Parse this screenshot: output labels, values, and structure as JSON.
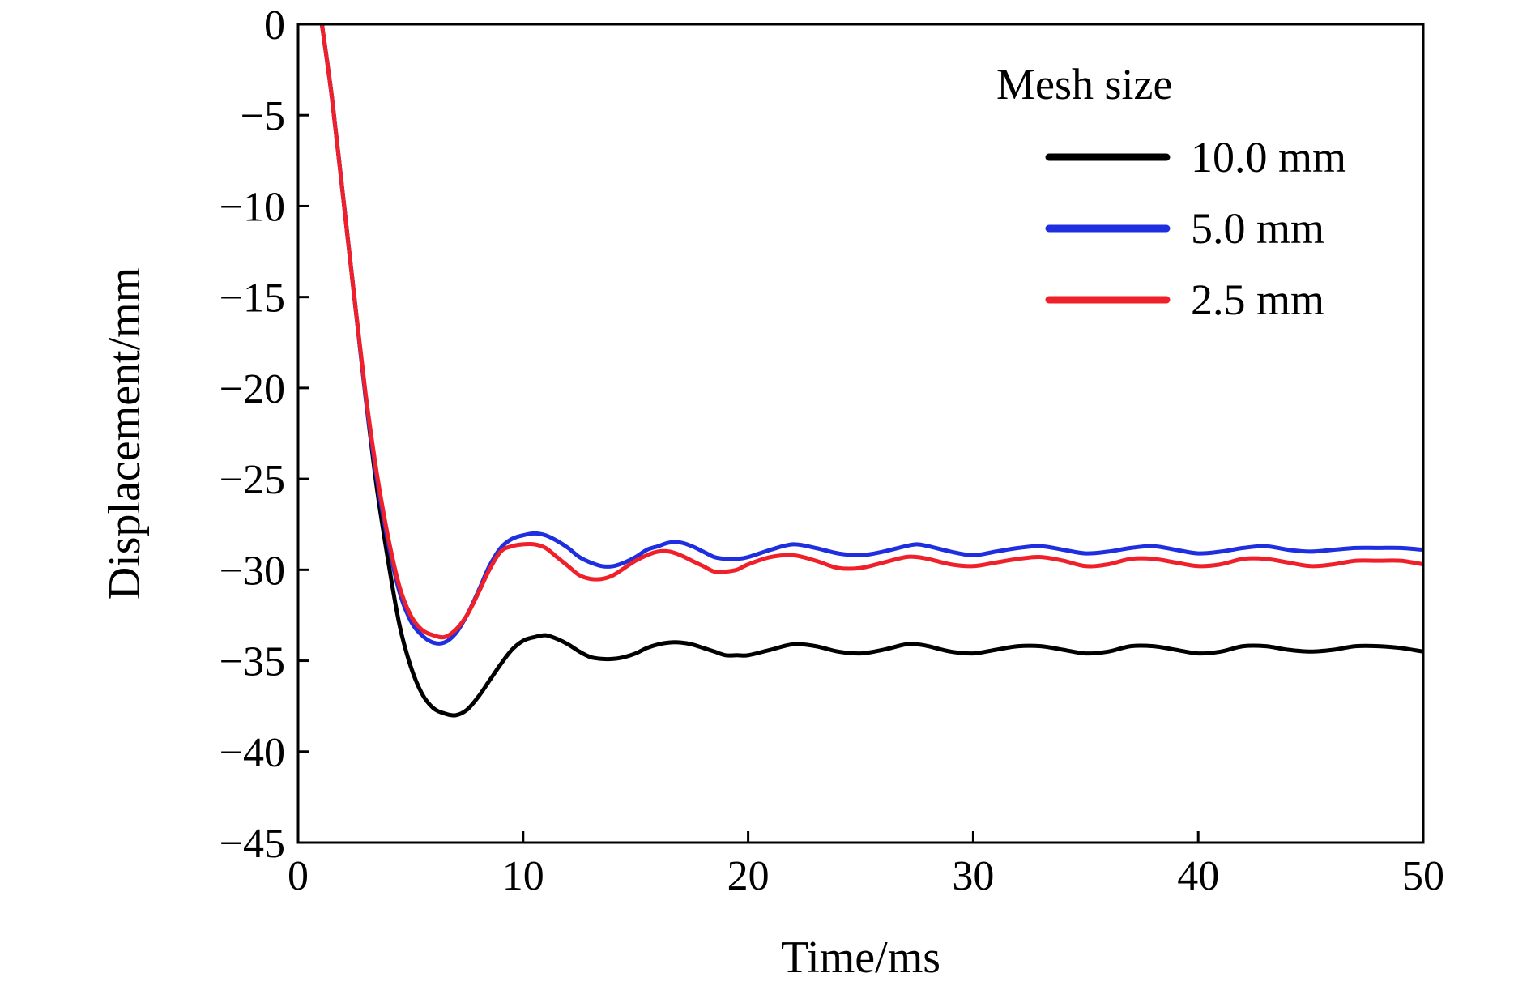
{
  "chart_data": {
    "type": "line",
    "title": "",
    "xlabel": "Time/ms",
    "ylabel": "Displacement/mm",
    "xlim": [
      0,
      50
    ],
    "ylim": [
      -45,
      0
    ],
    "xticks": [
      0,
      10,
      20,
      30,
      40,
      50
    ],
    "yticks": [
      0,
      -5,
      -10,
      -15,
      -20,
      -25,
      -30,
      -35,
      -40,
      -45
    ],
    "xtick_labels": [
      "0",
      "10",
      "20",
      "30",
      "40",
      "50"
    ],
    "ytick_labels": [
      "0",
      "−5",
      "−10",
      "−15",
      "−20",
      "−25",
      "−30",
      "−35",
      "−40",
      "−45"
    ],
    "grid": false,
    "legend": {
      "title": "Mesh size",
      "placement": "top-right"
    },
    "series": [
      {
        "name": "10.0 mm",
        "color": "#000000",
        "x": [
          1.0,
          1.5,
          2.0,
          2.5,
          3.0,
          3.5,
          4.0,
          4.5,
          5.0,
          5.5,
          6.0,
          6.5,
          7.0,
          7.5,
          8.0,
          8.5,
          9.0,
          9.5,
          10.0,
          10.5,
          11.0,
          11.5,
          12.0,
          12.5,
          13.0,
          13.5,
          14.0,
          14.5,
          15.0,
          15.5,
          16.0,
          16.5,
          17.0,
          17.5,
          18.0,
          18.5,
          19.0,
          19.5,
          20.0,
          21.0,
          22.0,
          23.0,
          24.0,
          25.0,
          26.0,
          27.0,
          27.5,
          28.0,
          29.0,
          30.0,
          31.0,
          32.0,
          33.0,
          34.0,
          35.0,
          36.0,
          37.0,
          38.0,
          39.0,
          40.0,
          41.0,
          42.0,
          43.0,
          44.0,
          45.0,
          46.0,
          47.0,
          48.0,
          49.0,
          50.0
        ],
        "values": [
          0.5,
          -4.0,
          -9.5,
          -15.0,
          -20.5,
          -25.5,
          -29.5,
          -33.0,
          -35.3,
          -36.8,
          -37.6,
          -37.9,
          -38.0,
          -37.7,
          -37.0,
          -36.1,
          -35.2,
          -34.4,
          -33.9,
          -33.7,
          -33.6,
          -33.8,
          -34.1,
          -34.5,
          -34.8,
          -34.9,
          -34.9,
          -34.8,
          -34.6,
          -34.3,
          -34.1,
          -34.0,
          -34.0,
          -34.1,
          -34.3,
          -34.5,
          -34.7,
          -34.7,
          -34.7,
          -34.4,
          -34.1,
          -34.2,
          -34.5,
          -34.6,
          -34.4,
          -34.1,
          -34.1,
          -34.2,
          -34.5,
          -34.6,
          -34.4,
          -34.2,
          -34.2,
          -34.4,
          -34.6,
          -34.5,
          -34.2,
          -34.2,
          -34.4,
          -34.6,
          -34.5,
          -34.2,
          -34.2,
          -34.4,
          -34.5,
          -34.4,
          -34.2,
          -34.2,
          -34.3,
          -34.5
        ]
      },
      {
        "name": "5.0 mm",
        "color": "#1f2fe0",
        "x": [
          1.0,
          1.5,
          2.0,
          2.5,
          3.0,
          3.5,
          4.0,
          4.5,
          5.0,
          5.5,
          6.0,
          6.5,
          7.0,
          7.5,
          8.0,
          8.5,
          9.0,
          9.5,
          10.0,
          10.5,
          11.0,
          11.5,
          12.0,
          12.5,
          13.0,
          13.5,
          14.0,
          14.5,
          15.0,
          15.5,
          16.0,
          16.5,
          17.0,
          17.5,
          18.0,
          18.5,
          19.0,
          19.5,
          20.0,
          21.0,
          22.0,
          23.0,
          24.0,
          25.0,
          26.0,
          27.0,
          27.5,
          28.0,
          29.0,
          30.0,
          31.0,
          32.0,
          33.0,
          34.0,
          35.0,
          36.0,
          37.0,
          38.0,
          39.0,
          40.0,
          41.0,
          42.0,
          43.0,
          44.0,
          45.0,
          46.0,
          47.0,
          48.0,
          49.0,
          50.0
        ],
        "values": [
          0.5,
          -4.0,
          -9.5,
          -15.0,
          -20.5,
          -25.0,
          -28.5,
          -31.2,
          -32.8,
          -33.6,
          -34.0,
          -34.0,
          -33.5,
          -32.5,
          -31.2,
          -29.8,
          -28.8,
          -28.3,
          -28.1,
          -28.0,
          -28.1,
          -28.4,
          -28.8,
          -29.3,
          -29.6,
          -29.8,
          -29.8,
          -29.6,
          -29.3,
          -28.9,
          -28.7,
          -28.5,
          -28.5,
          -28.7,
          -29.0,
          -29.3,
          -29.4,
          -29.4,
          -29.3,
          -28.9,
          -28.6,
          -28.8,
          -29.1,
          -29.2,
          -29.0,
          -28.7,
          -28.6,
          -28.7,
          -29.0,
          -29.2,
          -29.0,
          -28.8,
          -28.7,
          -28.9,
          -29.1,
          -29.0,
          -28.8,
          -28.7,
          -28.9,
          -29.1,
          -29.0,
          -28.8,
          -28.7,
          -28.9,
          -29.0,
          -28.9,
          -28.8,
          -28.8,
          -28.8,
          -28.9
        ]
      },
      {
        "name": "2.5 mm",
        "color": "#f0202a",
        "x": [
          1.0,
          1.5,
          2.0,
          2.5,
          3.0,
          3.5,
          4.0,
          4.5,
          5.0,
          5.5,
          6.0,
          6.5,
          7.0,
          7.5,
          8.0,
          8.5,
          9.0,
          9.5,
          10.0,
          10.5,
          11.0,
          11.5,
          12.0,
          12.5,
          13.0,
          13.5,
          14.0,
          14.5,
          15.0,
          15.5,
          16.0,
          16.5,
          17.0,
          17.5,
          18.0,
          18.5,
          19.0,
          19.5,
          20.0,
          21.0,
          22.0,
          23.0,
          24.0,
          25.0,
          26.0,
          27.0,
          27.5,
          28.0,
          29.0,
          30.0,
          31.0,
          32.0,
          33.0,
          34.0,
          35.0,
          36.0,
          37.0,
          38.0,
          39.0,
          40.0,
          41.0,
          42.0,
          43.0,
          44.0,
          45.0,
          46.0,
          47.0,
          48.0,
          49.0,
          50.0
        ],
        "values": [
          0.5,
          -4.0,
          -9.5,
          -15.0,
          -20.3,
          -24.7,
          -28.2,
          -30.9,
          -32.5,
          -33.3,
          -33.6,
          -33.7,
          -33.3,
          -32.5,
          -31.3,
          -30.0,
          -29.0,
          -28.7,
          -28.6,
          -28.6,
          -28.8,
          -29.3,
          -29.8,
          -30.3,
          -30.5,
          -30.5,
          -30.3,
          -29.9,
          -29.5,
          -29.2,
          -29.0,
          -29.0,
          -29.2,
          -29.5,
          -29.8,
          -30.1,
          -30.1,
          -30.0,
          -29.7,
          -29.3,
          -29.2,
          -29.5,
          -29.9,
          -29.9,
          -29.6,
          -29.3,
          -29.3,
          -29.4,
          -29.7,
          -29.8,
          -29.6,
          -29.4,
          -29.3,
          -29.5,
          -29.8,
          -29.7,
          -29.4,
          -29.4,
          -29.6,
          -29.8,
          -29.7,
          -29.4,
          -29.4,
          -29.6,
          -29.8,
          -29.7,
          -29.5,
          -29.5,
          -29.5,
          -29.7
        ]
      }
    ]
  }
}
